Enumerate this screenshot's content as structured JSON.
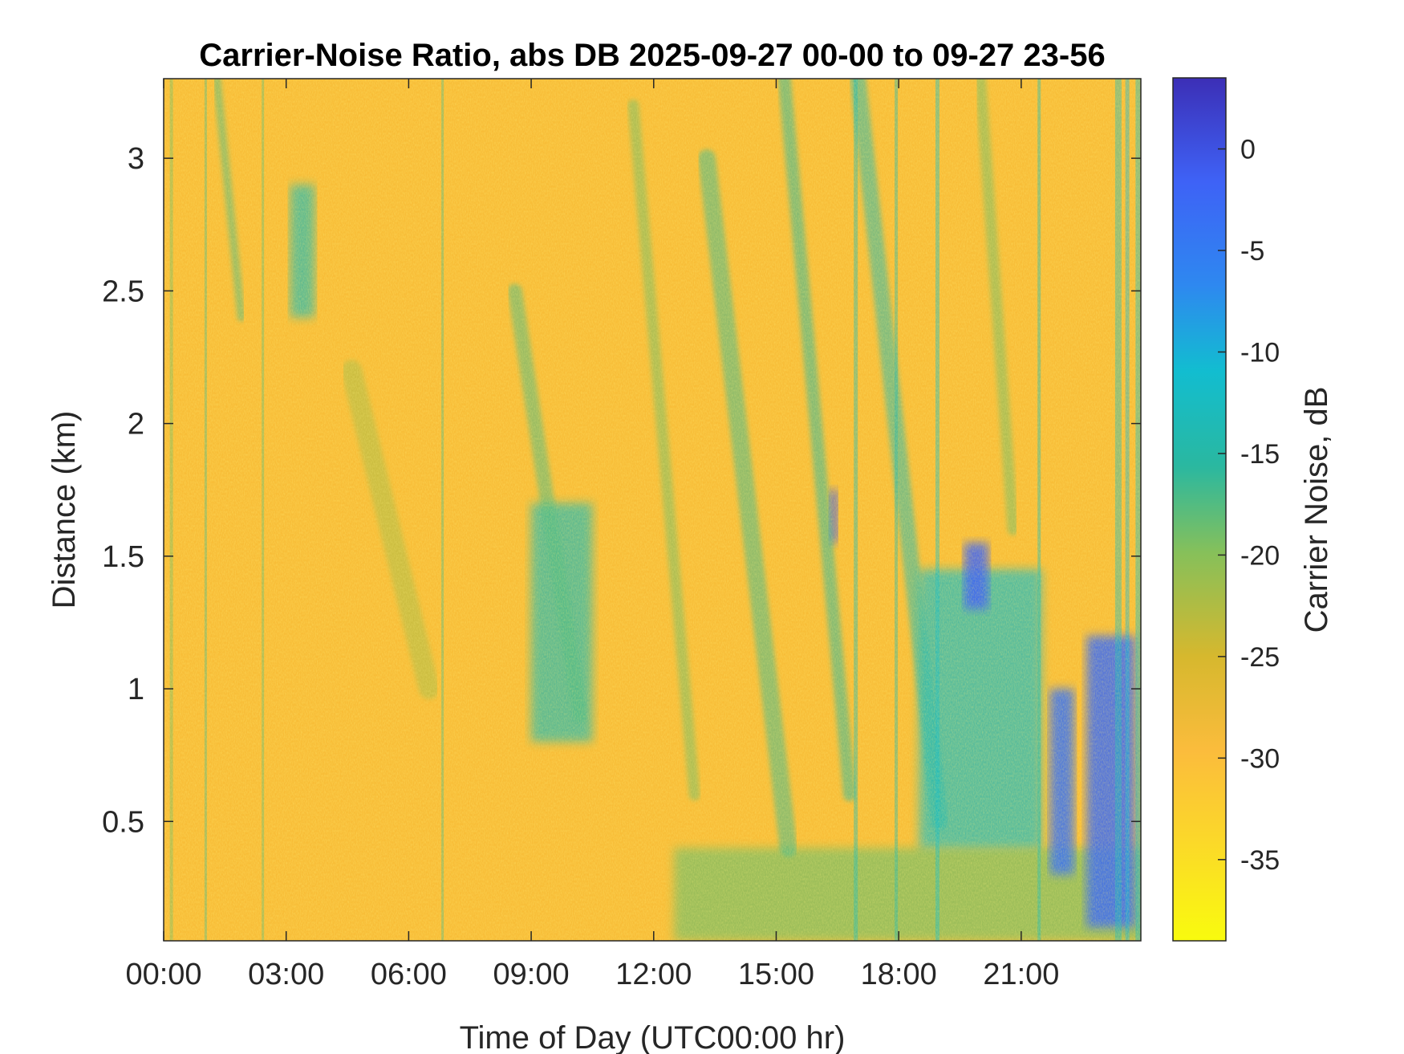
{
  "chart_data": {
    "type": "heatmap",
    "title": "Carrier-Noise Ratio, abs DB 2025-09-27 00-00 to 09-27 23-56",
    "xlabel": "Time of Day (UTC00:00 hr)",
    "ylabel": "Distance (km)",
    "x_tick_labels": [
      "00:00",
      "03:00",
      "06:00",
      "09:00",
      "12:00",
      "15:00",
      "18:00",
      "21:00"
    ],
    "x_tick_hours": [
      0,
      3,
      6,
      9,
      12,
      15,
      18,
      21
    ],
    "xlim_hours": [
      0,
      23.93
    ],
    "y_ticks": [
      0.5,
      1,
      1.5,
      2,
      2.5,
      3
    ],
    "y_tick_labels": [
      "0.5",
      "1",
      "1.5",
      "2",
      "2.5",
      "3"
    ],
    "ylim_km": [
      0.05,
      3.3
    ],
    "colorbar": {
      "label": "Carrier Noise, dB",
      "ticks": [
        0,
        -5,
        -10,
        -15,
        -20,
        -25,
        -30,
        -35
      ],
      "tick_labels": [
        "0",
        "-5",
        "-10",
        "-15",
        "-20",
        "-25",
        "-30",
        "-35"
      ],
      "range": [
        -39,
        3.5
      ],
      "colormap": "parula (reversed)",
      "colors": [
        "#f9fb0e",
        "#fbbc3c",
        "#cdb92d",
        "#86c05a",
        "#2ab8a0",
        "#12bdd0",
        "#2e88f0",
        "#3e62f6",
        "#3c2fb6"
      ]
    },
    "description_regions": [
      {
        "x_hours": [
          0,
          24
        ],
        "y_km": [
          0.05,
          3.3
        ],
        "value_db": -32,
        "note": "background"
      },
      {
        "x_hours": [
          12.5,
          24
        ],
        "y_km": [
          0.05,
          0.4
        ],
        "value_db": -24
      },
      {
        "x_hours": [
          18.5,
          21.5
        ],
        "y_km": [
          0.4,
          1.45
        ],
        "value_db": -16
      },
      {
        "x_hours": [
          9,
          10.5
        ],
        "y_km": [
          0.8,
          1.7
        ],
        "value_db": -18
      },
      {
        "x_hours": [
          3.1,
          3.7
        ],
        "y_km": [
          2.4,
          2.9
        ],
        "value_db": -18
      },
      {
        "x_hours": [
          16.3,
          16.5
        ],
        "y_km": [
          1.55,
          1.75
        ],
        "value_db": -2
      },
      {
        "x_hours": [
          19.6,
          20.2
        ],
        "y_km": [
          1.3,
          1.55
        ],
        "value_db": -3
      },
      {
        "x_hours": [
          21.7,
          22.3
        ],
        "y_km": [
          0.3,
          1.0
        ],
        "value_db": -5
      },
      {
        "x_hours": [
          22.6,
          23.8
        ],
        "y_km": [
          0.1,
          1.2
        ],
        "value_db": -4
      }
    ]
  }
}
